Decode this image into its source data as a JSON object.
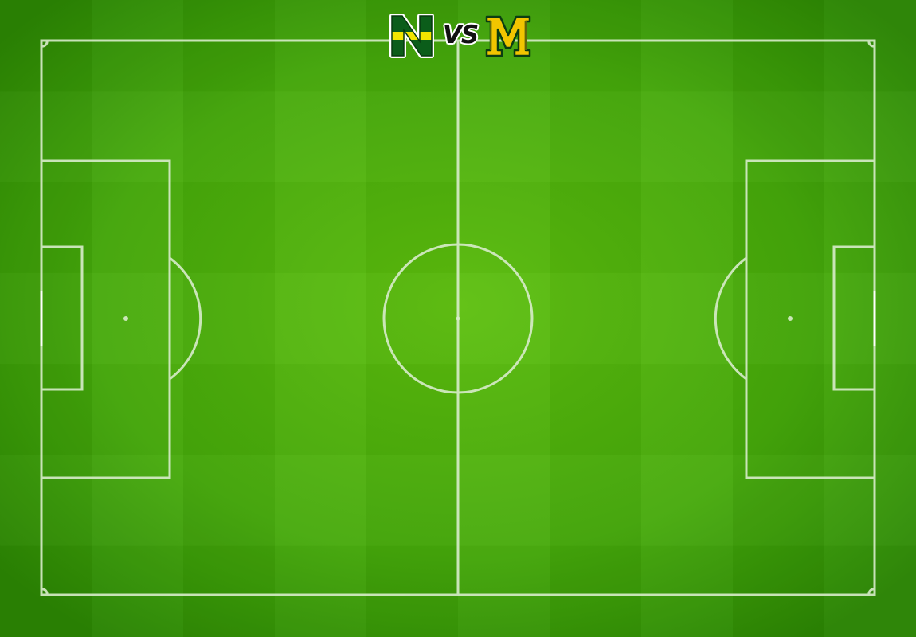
{
  "match": {
    "home_team": {
      "letter": "N",
      "icon": "team-n-logo-icon",
      "colors": {
        "primary": "#0b5d1a",
        "stripe": "#f2e600",
        "outline": "#ffffff"
      }
    },
    "vs_label": "VS",
    "away_team": {
      "letter": "M",
      "icon": "team-m-logo-icon",
      "colors": {
        "primary": "#f2c500",
        "outline": "#0b3d12"
      }
    }
  },
  "field": {
    "grass_color": "#4db30f",
    "grass_dark_color": "#2f8a06",
    "line_color": "#d8eccb"
  }
}
